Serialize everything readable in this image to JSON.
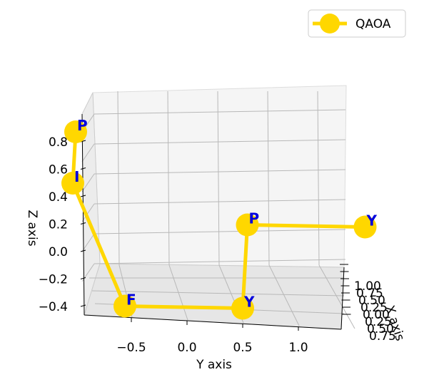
{
  "chart_data": {
    "type": "line-3d",
    "xlabel": "X axis",
    "ylabel": "Y axis",
    "zlabel": "Z axis",
    "legend": {
      "placement": "top-right",
      "entries": [
        "QAOA"
      ]
    },
    "grid": true,
    "colors": {
      "line": "#ffd700",
      "marker": "#ffd700",
      "label": "#0000dd"
    },
    "x_ticks": [
      "1.00",
      "0.75",
      "0.50",
      "0.25",
      "0.00",
      "0.25",
      "0.50",
      "0.75"
    ],
    "y_ticks": [
      "−0.5",
      "0.0",
      "0.5",
      "1.0"
    ],
    "z_ticks": [
      "0.8",
      "0.6",
      "0.4",
      "0.2",
      "0.0",
      "−0.2",
      "−0.4"
    ],
    "series": [
      {
        "name": "QAOA",
        "points": [
          {
            "label": "P",
            "x": 0.0,
            "y": -1.0,
            "z": 0.9
          },
          {
            "label": "I",
            "x": 0.0,
            "y": -1.0,
            "z": 0.5
          },
          {
            "label": "F",
            "x": 0.0,
            "y": -0.5,
            "z": -0.45
          },
          {
            "label": "Y",
            "x": 0.0,
            "y": 0.5,
            "z": -0.45
          },
          {
            "label": "P",
            "x": 0.0,
            "y": 0.5,
            "z": 0.2
          },
          {
            "label": "Y",
            "x": 0.0,
            "y": 1.5,
            "z": 0.2
          }
        ]
      }
    ]
  }
}
